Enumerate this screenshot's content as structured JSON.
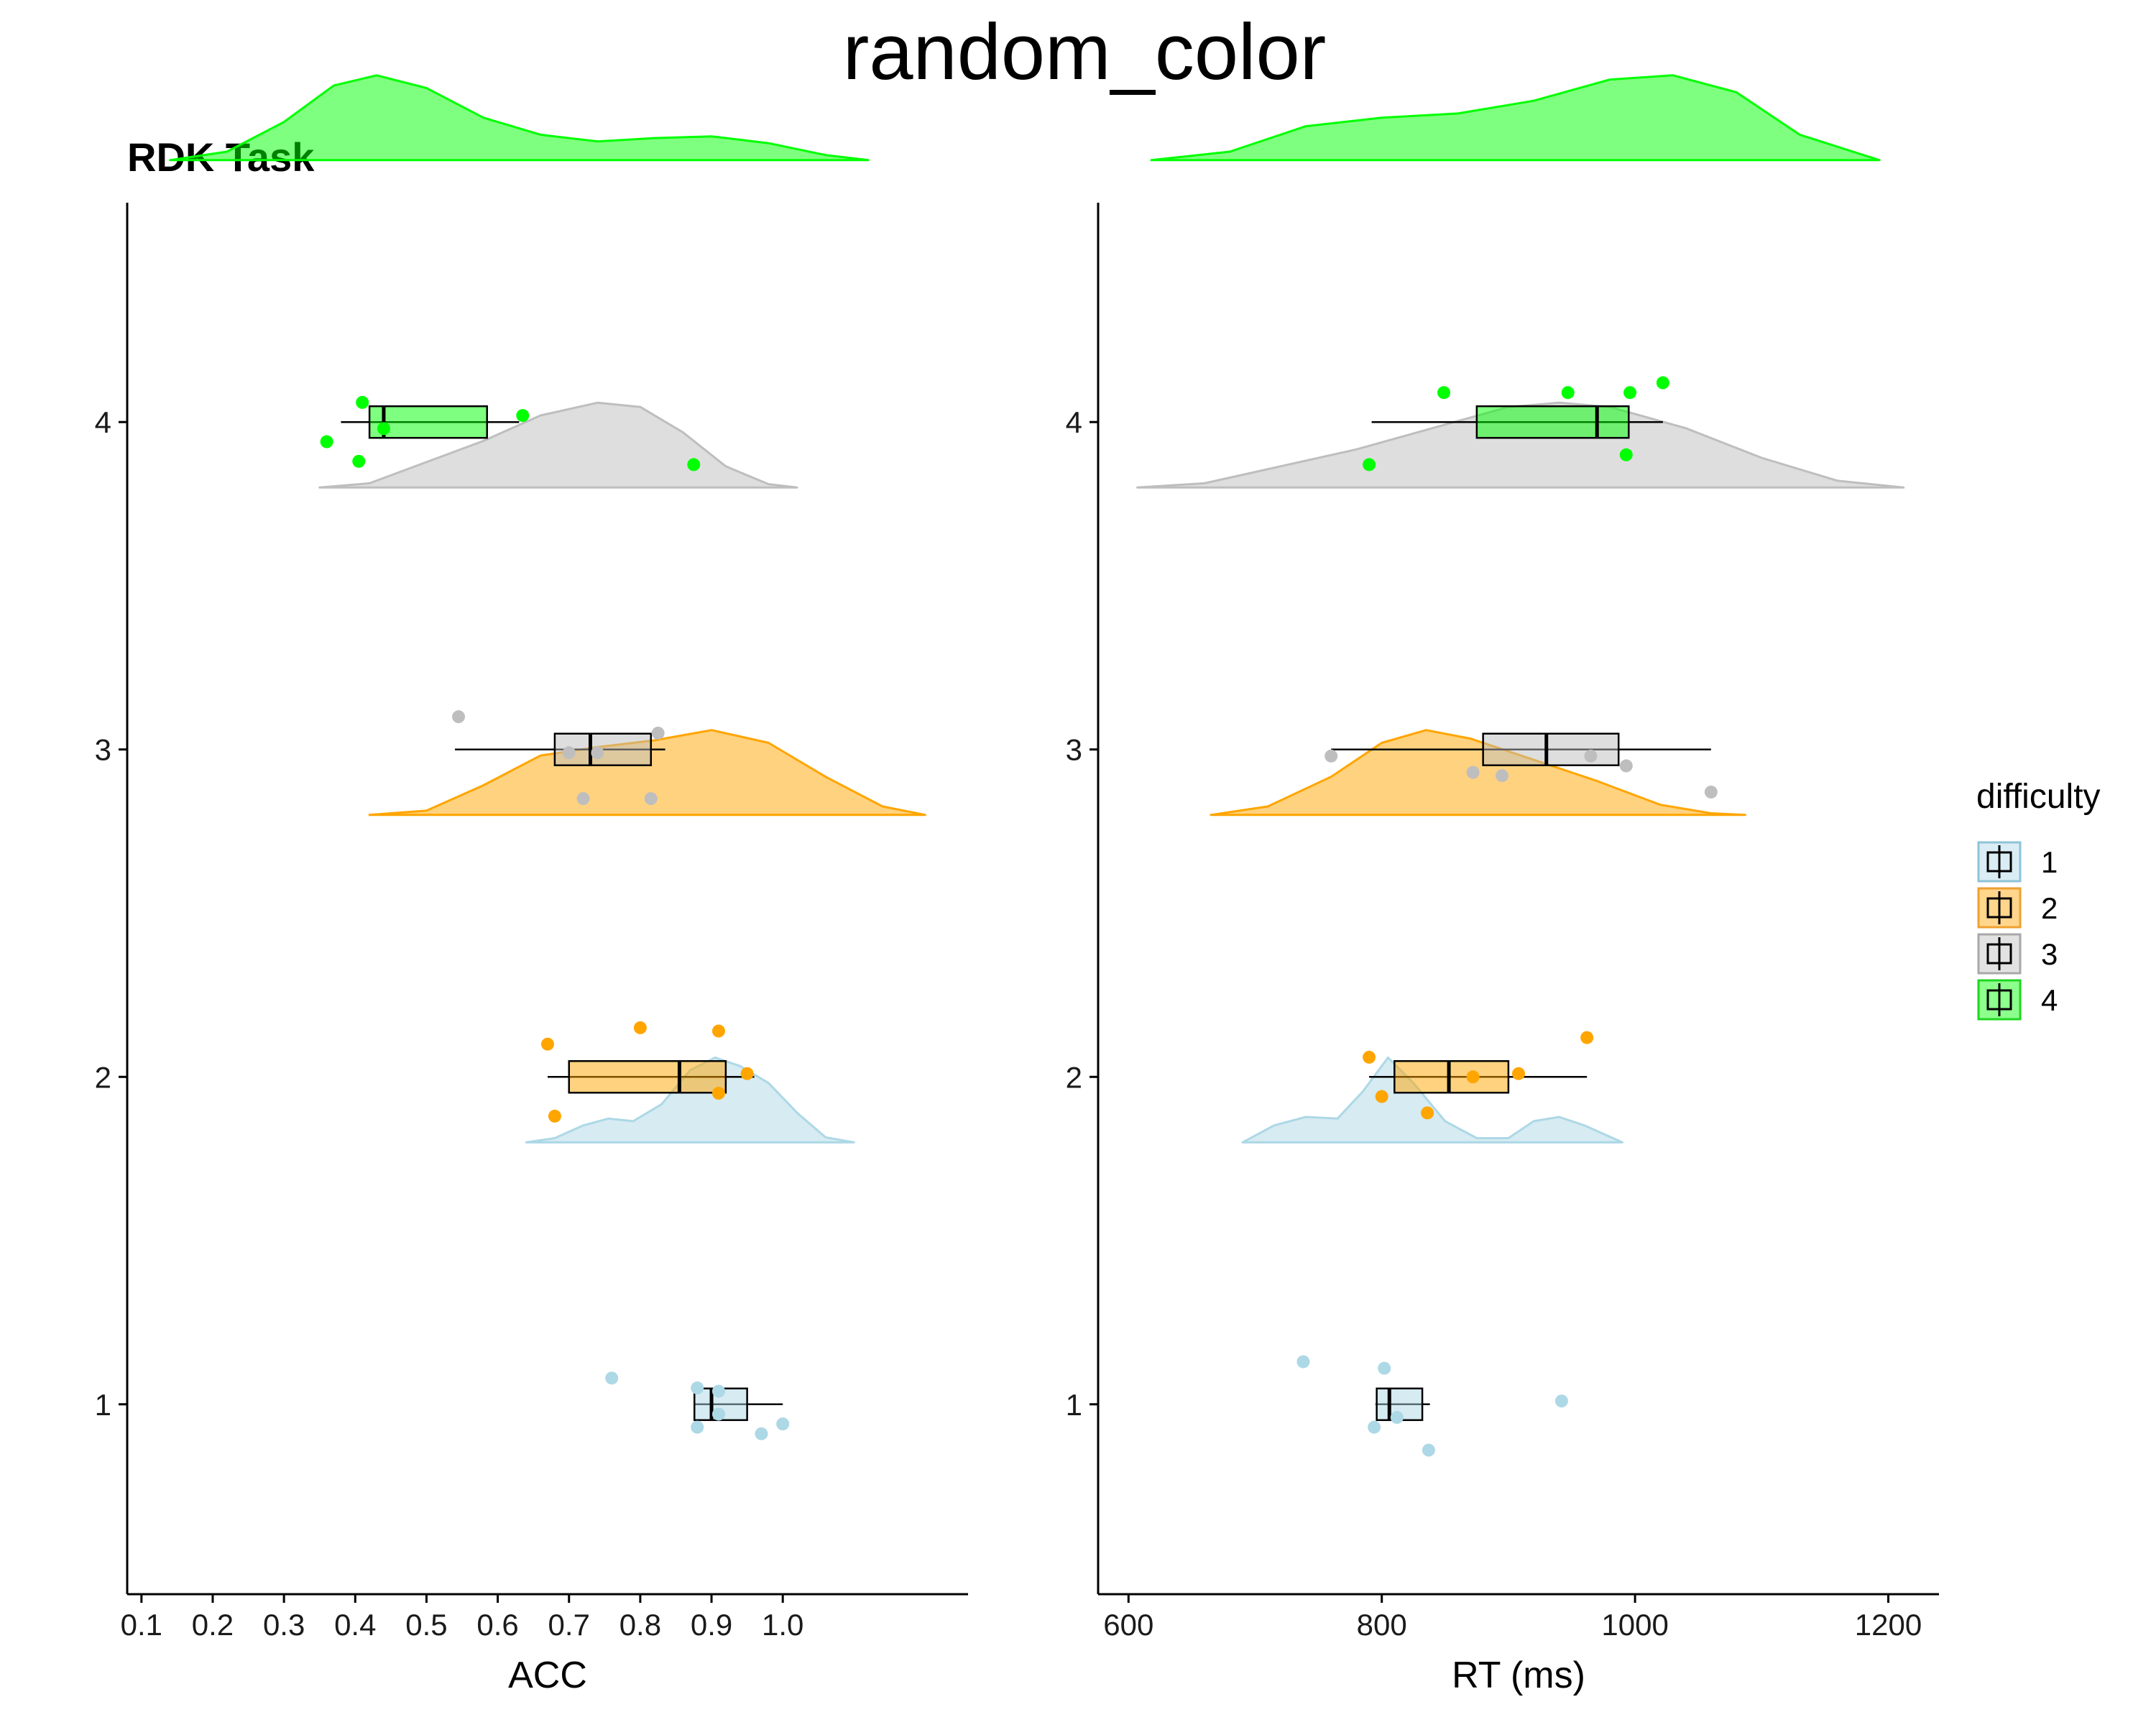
{
  "page": {
    "title": "random_color",
    "subtitle": "RDK Task"
  },
  "legend": {
    "title": "difficulty",
    "items": [
      {
        "label": "1",
        "fill": "#add8e6",
        "stroke": "#8fc3d6"
      },
      {
        "label": "2",
        "fill": "#ffa500",
        "stroke": "#f0a030"
      },
      {
        "label": "3",
        "fill": "#bebebe",
        "stroke": "#a8a8a8"
      },
      {
        "label": "4",
        "fill": "#00ff00",
        "stroke": "#1fd61f"
      }
    ]
  },
  "chart_data": [
    {
      "type": "raincloud",
      "xlabel": "ACC",
      "xticks": [
        "0.1",
        "0.2",
        "0.3",
        "0.4",
        "0.5",
        "0.6",
        "0.7",
        "0.8",
        "0.9",
        "1.0"
      ],
      "xlim": [
        0.08,
        1.26
      ],
      "yticks": [
        "1",
        "2",
        "3",
        "4"
      ],
      "ylim": [
        0.42,
        4.67
      ],
      "groups": [
        {
          "difficulty": "1",
          "color": "#add8e6",
          "box": {
            "min": 0.875,
            "q1": 0.876,
            "median": 0.9,
            "q3": 0.95,
            "max": 1.0
          },
          "points": [
            [
              0.76,
              1.08
            ],
            [
              0.88,
              1.05
            ],
            [
              0.91,
              1.04
            ],
            [
              0.88,
              0.93
            ],
            [
              0.91,
              0.97
            ],
            [
              0.97,
              0.91
            ],
            [
              1.0,
              0.94
            ]
          ],
          "density": {
            "x": [
              0.64,
              0.68,
              0.72,
              0.755,
              0.79,
              0.83,
              0.87,
              0.905,
              0.94,
              0.98,
              1.02,
              1.06,
              1.1
            ],
            "y": [
              0.0,
              0.05,
              0.2,
              0.28,
              0.25,
              0.45,
              0.85,
              1.0,
              0.9,
              0.7,
              0.35,
              0.06,
              0.0
            ]
          }
        },
        {
          "difficulty": "2",
          "color": "#ffa500",
          "box": {
            "min": 0.67,
            "q1": 0.7,
            "median": 0.855,
            "q3": 0.92,
            "max": 0.96
          },
          "points": [
            [
              0.67,
              2.1
            ],
            [
              0.8,
              2.15
            ],
            [
              0.91,
              2.14
            ],
            [
              0.95,
              2.01
            ],
            [
              0.91,
              1.95
            ],
            [
              0.68,
              1.88
            ]
          ],
          "density": {
            "x": [
              0.42,
              0.5,
              0.58,
              0.66,
              0.74,
              0.82,
              0.9,
              0.98,
              1.06,
              1.14,
              1.2
            ],
            "y": [
              0.0,
              0.05,
              0.35,
              0.7,
              0.8,
              0.88,
              1.0,
              0.85,
              0.45,
              0.1,
              0.0
            ]
          }
        },
        {
          "difficulty": "3",
          "color": "#bebebe",
          "box": {
            "min": 0.54,
            "q1": 0.68,
            "median": 0.73,
            "q3": 0.815,
            "max": 0.835
          },
          "points": [
            [
              0.545,
              3.1
            ],
            [
              0.7,
              2.99
            ],
            [
              0.74,
              2.99
            ],
            [
              0.825,
              3.05
            ],
            [
              0.72,
              2.85
            ],
            [
              0.815,
              2.85
            ]
          ],
          "density": {
            "x": [
              0.35,
              0.42,
              0.5,
              0.58,
              0.66,
              0.74,
              0.8,
              0.86,
              0.92,
              0.98,
              1.02
            ],
            "y": [
              0.0,
              0.05,
              0.3,
              0.55,
              0.85,
              1.0,
              0.95,
              0.65,
              0.25,
              0.04,
              0.0
            ]
          }
        },
        {
          "difficulty": "4",
          "color": "#00ff00",
          "box": {
            "min": 0.38,
            "q1": 0.42,
            "median": 0.44,
            "q3": 0.585,
            "max": 0.63
          },
          "points": [
            [
              0.41,
              4.06
            ],
            [
              0.44,
              3.98
            ],
            [
              0.36,
              3.94
            ],
            [
              0.405,
              3.88
            ],
            [
              0.635,
              4.02
            ],
            [
              0.875,
              3.87
            ]
          ],
          "density": {
            "x": [
              0.14,
              0.22,
              0.3,
              0.37,
              0.43,
              0.5,
              0.58,
              0.66,
              0.74,
              0.82,
              0.9,
              0.98,
              1.06,
              1.12
            ],
            "y": [
              0.0,
              0.1,
              0.45,
              0.88,
              1.0,
              0.85,
              0.5,
              0.3,
              0.22,
              0.26,
              0.28,
              0.2,
              0.06,
              0.0
            ]
          }
        }
      ]
    },
    {
      "type": "raincloud",
      "xlabel": "RT (ms)",
      "xticks": [
        "600",
        "800",
        "1000",
        "1200"
      ],
      "xlim": [
        576,
        1240
      ],
      "yticks": [
        "1",
        "2",
        "3",
        "4"
      ],
      "ylim": [
        0.42,
        4.67
      ],
      "groups": [
        {
          "difficulty": "1",
          "color": "#add8e6",
          "box": {
            "min": 795,
            "q1": 796,
            "median": 806,
            "q3": 832,
            "max": 838
          },
          "points": [
            [
              738,
              1.13
            ],
            [
              802,
              1.11
            ],
            [
              942,
              1.01
            ],
            [
              812,
              0.96
            ],
            [
              794,
              0.93
            ],
            [
              837,
              0.86
            ]
          ],
          "density": {
            "x": [
              690,
              715,
              740,
              765,
              785,
              805,
              825,
              850,
              875,
              900,
              920,
              940,
              960,
              990
            ],
            "y": [
              0.0,
              0.2,
              0.3,
              0.28,
              0.6,
              1.0,
              0.7,
              0.25,
              0.05,
              0.05,
              0.25,
              0.3,
              0.2,
              0.0
            ]
          }
        },
        {
          "difficulty": "2",
          "color": "#ffa500",
          "box": {
            "min": 790,
            "q1": 810,
            "median": 853,
            "q3": 900,
            "max": 962
          },
          "points": [
            [
              790,
              2.06
            ],
            [
              872,
              2.0
            ],
            [
              908,
              2.01
            ],
            [
              962,
              2.12
            ],
            [
              800,
              1.94
            ],
            [
              836,
              1.89
            ]
          ],
          "density": {
            "x": [
              665,
              710,
              760,
              800,
              835,
              870,
              920,
              970,
              1020,
              1060,
              1087
            ],
            "y": [
              0.0,
              0.1,
              0.45,
              0.85,
              1.0,
              0.9,
              0.65,
              0.4,
              0.12,
              0.02,
              0.0
            ]
          }
        },
        {
          "difficulty": "3",
          "color": "#bebebe",
          "box": {
            "min": 760,
            "q1": 880,
            "median": 930,
            "q3": 987,
            "max": 1060
          },
          "points": [
            [
              760,
              2.98
            ],
            [
              872,
              2.93
            ],
            [
              895,
              2.92
            ],
            [
              965,
              2.98
            ],
            [
              993,
              2.95
            ],
            [
              1060,
              2.87
            ]
          ],
          "density": {
            "x": [
              607,
              660,
              720,
              780,
              840,
              900,
              940,
              980,
              1040,
              1100,
              1160,
              1212
            ],
            "y": [
              0.0,
              0.05,
              0.25,
              0.45,
              0.7,
              0.95,
              1.0,
              0.95,
              0.7,
              0.35,
              0.08,
              0.0
            ]
          }
        },
        {
          "difficulty": "4",
          "color": "#00ff00",
          "box": {
            "min": 792,
            "q1": 875,
            "median": 970,
            "q3": 995,
            "max": 1022
          },
          "points": [
            [
              849,
              4.09
            ],
            [
              947,
              4.09
            ],
            [
              996,
              4.09
            ],
            [
              1022,
              4.12
            ],
            [
              993,
              3.9
            ],
            [
              790,
              3.87
            ]
          ],
          "density": {
            "x": [
              618,
              680,
              740,
              800,
              860,
              920,
              980,
              1030,
              1080,
              1130,
              1193
            ],
            "y": [
              0.0,
              0.1,
              0.4,
              0.5,
              0.55,
              0.7,
              0.95,
              1.0,
              0.8,
              0.3,
              0.0
            ]
          }
        }
      ]
    }
  ]
}
